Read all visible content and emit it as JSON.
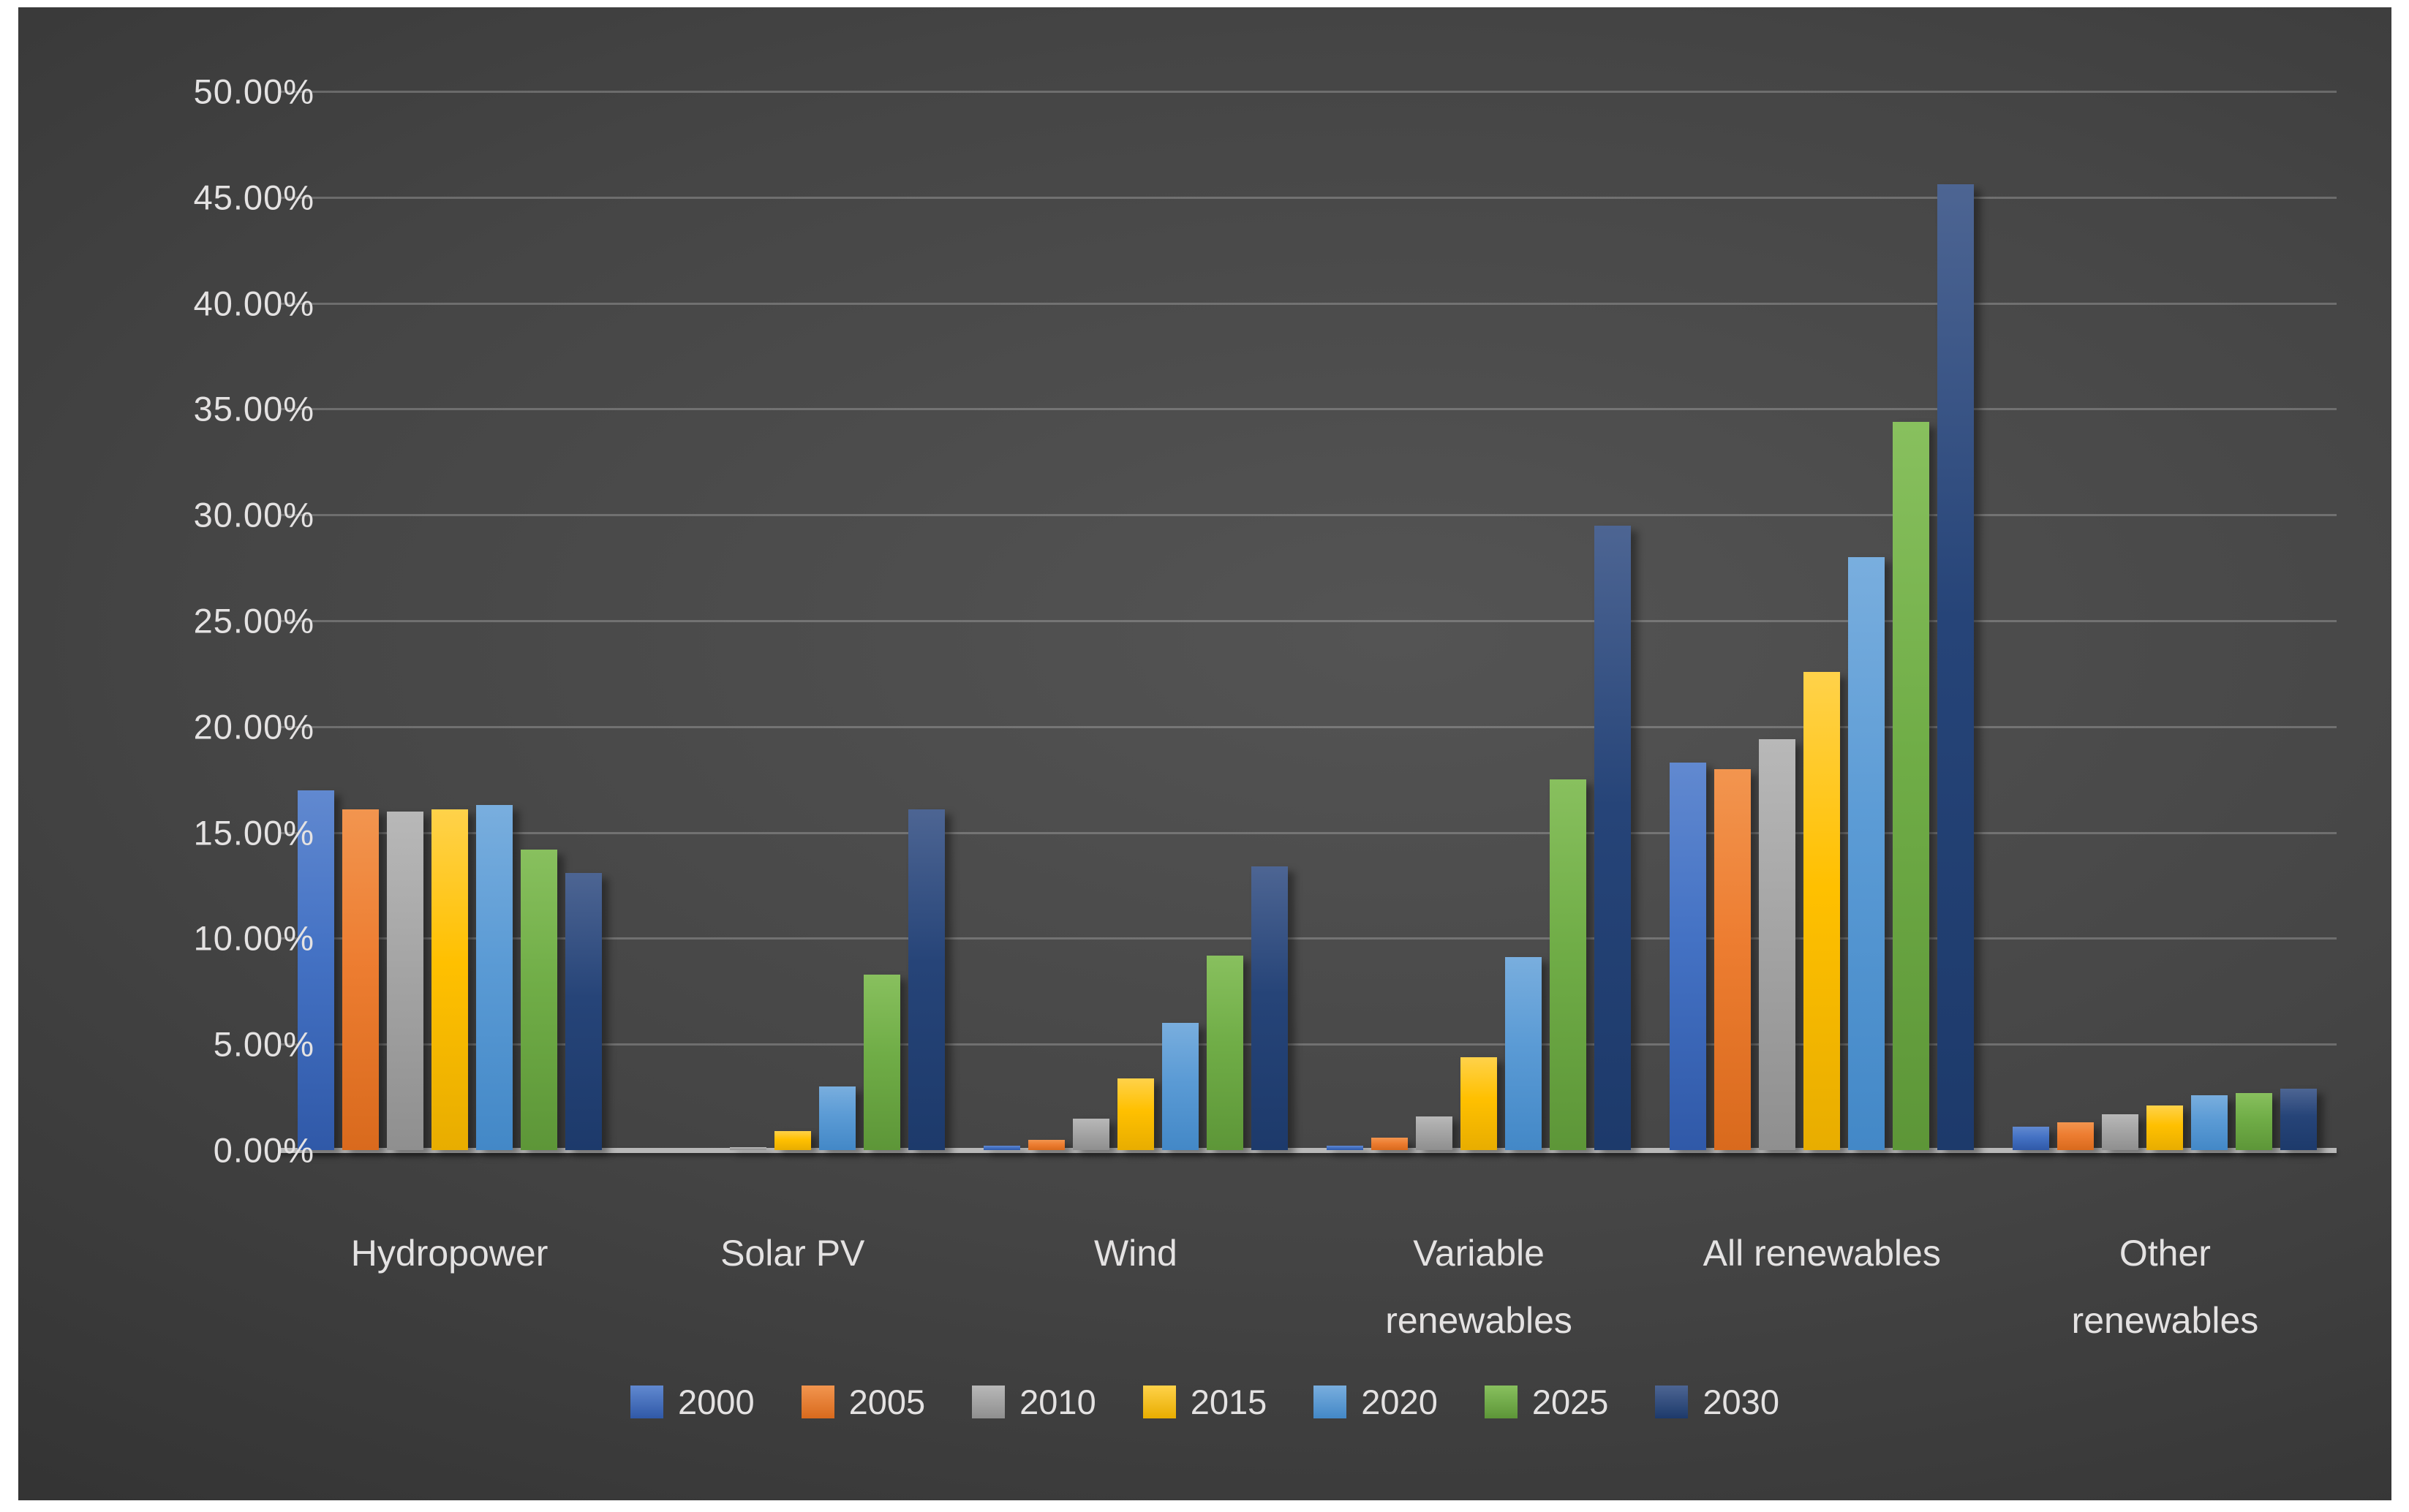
{
  "accent_colors": {
    "background_panel": "#3f3f3f",
    "page_border": "#ffffff",
    "gridline": "rgba(255,255,255,0.22)",
    "axis_line": "#cdcdcd",
    "text": "#e4e2e2"
  },
  "chart_data": {
    "type": "bar",
    "title": "",
    "xlabel": "",
    "ylabel": "",
    "ylim": [
      0,
      50
    ],
    "ytick_step": 5,
    "ytick_labels": [
      "0.00%",
      "5.00%",
      "10.00%",
      "15.00%",
      "20.00%",
      "25.00%",
      "30.00%",
      "35.00%",
      "40.00%",
      "45.00%",
      "50.00%"
    ],
    "grid": true,
    "legend_position": "bottom",
    "categories": [
      "Hydropower",
      "Solar PV",
      "Wind",
      "Variable renewables",
      "All renewables",
      "Other renewables"
    ],
    "category_label_lines": [
      [
        "Hydropower"
      ],
      [
        "Solar PV"
      ],
      [
        "Wind"
      ],
      [
        "Variable",
        "renewables"
      ],
      [
        "All renewables"
      ],
      [
        "Other",
        "renewables"
      ]
    ],
    "series": [
      {
        "name": "2000",
        "color": "#4472C4",
        "color_top": "#6189d0",
        "color_bottom": "#3059a8",
        "values": [
          17.0,
          0.0,
          0.2,
          0.2,
          18.3,
          1.1
        ]
      },
      {
        "name": "2005",
        "color": "#ED7D31",
        "color_top": "#f2954f",
        "color_bottom": "#d96a1d",
        "values": [
          16.1,
          0.0,
          0.5,
          0.6,
          18.0,
          1.3
        ]
      },
      {
        "name": "2010",
        "color": "#A5A5A5",
        "color_top": "#b8b8b8",
        "color_bottom": "#8f8f8f",
        "values": [
          16.0,
          0.1,
          1.5,
          1.6,
          19.4,
          1.7
        ]
      },
      {
        "name": "2015",
        "color": "#FFC000",
        "color_top": "#ffd24a",
        "color_bottom": "#e8ad00",
        "values": [
          16.1,
          0.9,
          3.4,
          4.4,
          22.6,
          2.1
        ]
      },
      {
        "name": "2020",
        "color": "#5B9BD5",
        "color_top": "#79aede",
        "color_bottom": "#4388c7",
        "values": [
          16.3,
          3.0,
          6.0,
          9.1,
          28.0,
          2.6
        ]
      },
      {
        "name": "2025",
        "color": "#70AD47",
        "color_top": "#88c05e",
        "color_bottom": "#5d9638",
        "values": [
          14.2,
          8.3,
          9.2,
          17.5,
          34.4,
          2.7
        ]
      },
      {
        "name": "2030",
        "color": "#264478",
        "color_top": "#4d6593",
        "color_bottom": "#1d3a6b",
        "values": [
          13.1,
          16.1,
          13.4,
          29.5,
          45.6,
          2.9
        ]
      }
    ]
  }
}
